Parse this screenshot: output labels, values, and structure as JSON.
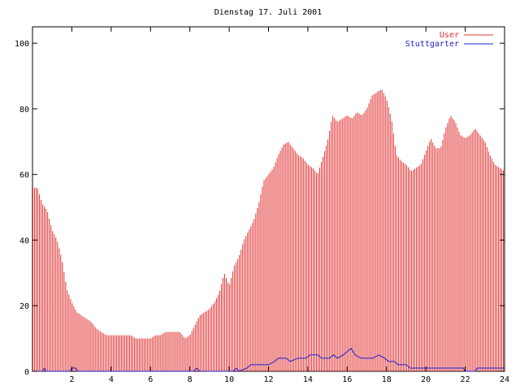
{
  "chart_data": {
    "type": "bar",
    "title": "Dienstag 17. Juli 2001",
    "xlabel": "",
    "ylabel": "",
    "xlim": [
      0,
      24
    ],
    "ylim": [
      0,
      105
    ],
    "x_ticks": [
      2,
      4,
      6,
      8,
      10,
      12,
      14,
      16,
      18,
      20,
      22,
      24
    ],
    "y_ticks": [
      0,
      20,
      40,
      60,
      80,
      100
    ],
    "grid": false,
    "legend_position": "top-right",
    "series": [
      {
        "name": "User",
        "color": "#e03030",
        "style": "impulses",
        "points": [
          [
            0.0,
            56
          ],
          [
            0.25,
            56
          ],
          [
            0.5,
            51
          ],
          [
            0.75,
            49
          ],
          [
            1.0,
            43
          ],
          [
            1.25,
            40
          ],
          [
            1.5,
            34
          ],
          [
            1.75,
            25
          ],
          [
            2.0,
            21
          ],
          [
            2.25,
            18
          ],
          [
            2.5,
            17
          ],
          [
            2.75,
            16
          ],
          [
            3.0,
            15
          ],
          [
            3.25,
            13
          ],
          [
            3.5,
            12
          ],
          [
            3.75,
            11
          ],
          [
            4.0,
            11
          ],
          [
            4.25,
            11
          ],
          [
            4.5,
            11
          ],
          [
            4.75,
            11
          ],
          [
            5.0,
            11
          ],
          [
            5.25,
            10
          ],
          [
            5.5,
            10
          ],
          [
            5.75,
            10
          ],
          [
            6.0,
            10
          ],
          [
            6.25,
            11
          ],
          [
            6.5,
            11
          ],
          [
            6.75,
            12
          ],
          [
            7.0,
            12
          ],
          [
            7.25,
            12
          ],
          [
            7.5,
            12
          ],
          [
            7.75,
            10
          ],
          [
            8.0,
            11
          ],
          [
            8.25,
            14
          ],
          [
            8.5,
            17
          ],
          [
            8.75,
            18
          ],
          [
            9.0,
            19
          ],
          [
            9.25,
            21
          ],
          [
            9.5,
            24
          ],
          [
            9.75,
            30
          ],
          [
            10.0,
            26
          ],
          [
            10.25,
            32
          ],
          [
            10.5,
            35
          ],
          [
            10.75,
            40
          ],
          [
            11.0,
            43
          ],
          [
            11.25,
            46
          ],
          [
            11.5,
            51
          ],
          [
            11.75,
            58
          ],
          [
            12.0,
            60
          ],
          [
            12.25,
            62
          ],
          [
            12.5,
            66
          ],
          [
            12.75,
            69
          ],
          [
            13.0,
            70
          ],
          [
            13.25,
            68
          ],
          [
            13.5,
            66
          ],
          [
            13.75,
            65
          ],
          [
            14.0,
            63
          ],
          [
            14.25,
            62
          ],
          [
            14.5,
            60
          ],
          [
            14.75,
            65
          ],
          [
            15.0,
            70
          ],
          [
            15.25,
            78
          ],
          [
            15.5,
            76
          ],
          [
            15.75,
            77
          ],
          [
            16.0,
            78
          ],
          [
            16.25,
            77
          ],
          [
            16.5,
            79
          ],
          [
            16.75,
            78
          ],
          [
            17.0,
            80
          ],
          [
            17.25,
            84
          ],
          [
            17.5,
            85
          ],
          [
            17.75,
            86
          ],
          [
            18.0,
            83
          ],
          [
            18.25,
            77
          ],
          [
            18.5,
            66
          ],
          [
            18.75,
            64
          ],
          [
            19.0,
            63
          ],
          [
            19.25,
            61
          ],
          [
            19.5,
            62
          ],
          [
            19.75,
            63
          ],
          [
            20.0,
            67
          ],
          [
            20.25,
            71
          ],
          [
            20.5,
            68
          ],
          [
            20.75,
            68
          ],
          [
            21.0,
            74
          ],
          [
            21.25,
            78
          ],
          [
            21.5,
            76
          ],
          [
            21.75,
            72
          ],
          [
            22.0,
            71
          ],
          [
            22.25,
            72
          ],
          [
            22.5,
            74
          ],
          [
            22.75,
            72
          ],
          [
            23.0,
            70
          ],
          [
            23.25,
            66
          ],
          [
            23.5,
            63
          ],
          [
            23.75,
            62
          ],
          [
            24.0,
            61
          ]
        ]
      },
      {
        "name": "Stuttgarter",
        "color": "#2020d0",
        "style": "line",
        "points": [
          [
            0,
            0
          ],
          [
            0.5,
            0
          ],
          [
            0.6,
            1
          ],
          [
            0.7,
            0
          ],
          [
            1.9,
            0
          ],
          [
            2.0,
            1
          ],
          [
            2.2,
            1
          ],
          [
            2.3,
            0
          ],
          [
            8.2,
            0
          ],
          [
            8.35,
            1
          ],
          [
            8.5,
            0
          ],
          [
            10.2,
            0
          ],
          [
            10.35,
            1
          ],
          [
            10.5,
            0
          ],
          [
            10.9,
            1
          ],
          [
            11.1,
            2
          ],
          [
            11.5,
            2
          ],
          [
            11.7,
            2
          ],
          [
            12.0,
            2
          ],
          [
            12.3,
            3
          ],
          [
            12.5,
            4
          ],
          [
            12.9,
            4
          ],
          [
            13.1,
            3
          ],
          [
            13.5,
            4
          ],
          [
            13.9,
            4
          ],
          [
            14.1,
            5
          ],
          [
            14.5,
            5
          ],
          [
            14.7,
            4
          ],
          [
            15.1,
            4
          ],
          [
            15.3,
            5
          ],
          [
            15.5,
            4
          ],
          [
            15.8,
            5
          ],
          [
            16.0,
            6
          ],
          [
            16.2,
            7
          ],
          [
            16.4,
            5
          ],
          [
            16.7,
            4
          ],
          [
            17.0,
            4
          ],
          [
            17.3,
            4
          ],
          [
            17.6,
            5
          ],
          [
            17.9,
            4
          ],
          [
            18.1,
            3
          ],
          [
            18.4,
            3
          ],
          [
            18.6,
            2
          ],
          [
            19.0,
            2
          ],
          [
            19.2,
            1
          ],
          [
            20.0,
            1
          ],
          [
            21.0,
            1
          ],
          [
            21.9,
            1
          ],
          [
            22.0,
            0
          ],
          [
            22.5,
            0
          ],
          [
            22.6,
            1
          ],
          [
            23.0,
            1
          ],
          [
            24.0,
            1
          ]
        ]
      }
    ]
  }
}
